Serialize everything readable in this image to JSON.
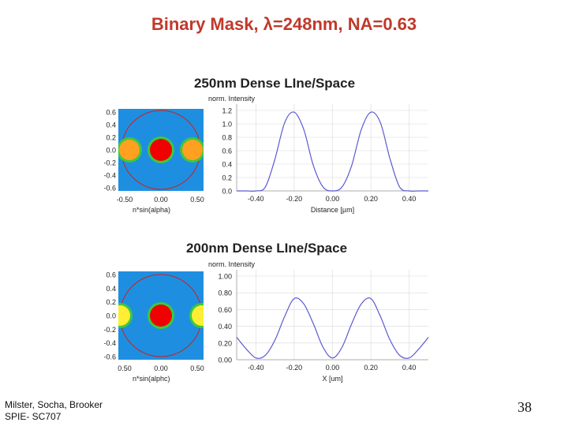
{
  "slide": {
    "title": "Binary Mask, λ=248nm, NA=0.63",
    "footer_line1": "Milster, Socha, Brooker",
    "footer_line2": "SPIE- SC707",
    "page_number": "38"
  },
  "colors": {
    "title": "#c0392b",
    "pupil_background": "#1e8fe0",
    "pupil_circle": "#cc2020",
    "order_zero": "#f00000",
    "order_first_250": "#ffa020",
    "order_first_200": "#ffee33",
    "halo": "#3ec83e",
    "curve": "#5a5ad2",
    "grid": "#d8d8d8"
  },
  "panels": [
    {
      "heading": "250nm Dense LIne/Space",
      "pupil_ticks_y": [
        "0.6",
        "0.4",
        "0.2",
        "0.0",
        "-0.2",
        "-0.4",
        "-0.6"
      ],
      "pupil_ticks_x": [
        "-0.50",
        "0.00",
        "0.50"
      ],
      "pupil_xlabel": "n*sin(alpha)",
      "plot_ylabel": "norm. Intensity",
      "plot_ticks_y": [
        "1.2",
        "1.0",
        "0.8",
        "0.6",
        "0.4",
        "0.2",
        "0.0"
      ],
      "plot_ticks_x": [
        "-0.40",
        "-0.20",
        "0.00",
        "0.20",
        "0.40"
      ],
      "plot_xlabel": "Distance [µm]"
    },
    {
      "heading": "200nm Dense LIne/Space",
      "pupil_ticks_y": [
        "0.6",
        "0.4",
        "0.2",
        "0.0",
        "-0.2",
        "-0.4",
        "-0.6"
      ],
      "pupil_ticks_x": [
        "0.50",
        "0.00",
        "0.50"
      ],
      "pupil_xlabel": "n*sin(alphc)",
      "plot_ylabel": "norm. Intensity",
      "plot_ticks_y": [
        "1.00",
        "0.80",
        "0.60",
        "0.40",
        "0.20",
        "0.00"
      ],
      "plot_ticks_x": [
        "-0.40",
        "-0.20",
        "0.00",
        "0.20",
        "0.40"
      ],
      "plot_xlabel": "X [um]"
    }
  ],
  "chart_data": [
    {
      "type": "line",
      "title": "250nm Dense LIne/Space",
      "xlabel": "Distance [µm]",
      "ylabel": "norm. Intensity",
      "xlim": [
        -0.5,
        0.5
      ],
      "ylim": [
        0,
        1.3
      ],
      "series": [
        {
          "x": [
            -0.5,
            -0.45,
            -0.4,
            -0.35,
            -0.3,
            -0.25,
            -0.2,
            -0.15,
            -0.1,
            -0.05,
            0,
            0.05,
            0.1,
            0.15,
            0.2,
            0.25,
            0.3,
            0.35,
            0.4,
            0.45,
            0.5
          ],
          "values": [
            0.0,
            0.0,
            0.0,
            0.06,
            0.48,
            1.02,
            1.18,
            0.92,
            0.38,
            0.06,
            0.0,
            0.06,
            0.38,
            0.92,
            1.18,
            1.02,
            0.48,
            0.06,
            0.0,
            0.0,
            0.0
          ]
        }
      ]
    },
    {
      "type": "line",
      "title": "200nm Dense LIne/Space",
      "xlabel": "X [um]",
      "ylabel": "norm. Intensity",
      "xlim": [
        -0.5,
        0.5
      ],
      "ylim": [
        0,
        1.0
      ],
      "series": [
        {
          "x": [
            -0.5,
            -0.45,
            -0.4,
            -0.35,
            -0.3,
            -0.25,
            -0.2,
            -0.15,
            -0.1,
            -0.05,
            0,
            0.05,
            0.1,
            0.15,
            0.2,
            0.25,
            0.3,
            0.35,
            0.4,
            0.45,
            0.5
          ],
          "values": [
            0.25,
            0.12,
            0.02,
            0.05,
            0.22,
            0.48,
            0.68,
            0.62,
            0.4,
            0.14,
            0.02,
            0.14,
            0.4,
            0.62,
            0.68,
            0.48,
            0.22,
            0.05,
            0.02,
            0.12,
            0.25
          ]
        }
      ]
    }
  ]
}
